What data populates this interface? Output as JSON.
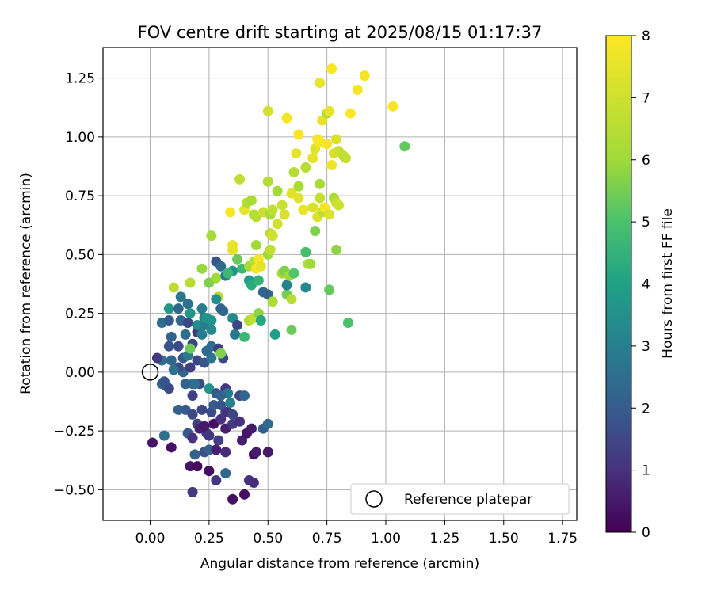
{
  "chart_data": {
    "type": "scatter",
    "title": "FOV centre drift starting at 2025/08/15 01:17:37",
    "xlabel": "Angular distance from reference (arcmin)",
    "ylabel": "Rotation from reference (arcmin)",
    "xlim": [
      -0.2,
      1.81
    ],
    "ylim": [
      -0.63,
      1.38
    ],
    "xticks": [
      0.0,
      0.25,
      0.5,
      0.75,
      1.0,
      1.25,
      1.5,
      1.75
    ],
    "xtick_labels": [
      "0.00",
      "0.25",
      "0.50",
      "0.75",
      "1.00",
      "1.25",
      "1.50",
      "1.75"
    ],
    "yticks": [
      -0.5,
      -0.25,
      0.0,
      0.25,
      0.5,
      0.75,
      1.0,
      1.25
    ],
    "ytick_labels": [
      "−0.50",
      "−0.25",
      "0.00",
      "0.25",
      "0.50",
      "0.75",
      "1.00",
      "1.25"
    ],
    "grid": true,
    "colorbar": {
      "label": "Hours from first FF file",
      "colormap": "viridis",
      "range": [
        0,
        8
      ],
      "ticks": [
        0,
        1,
        2,
        3,
        4,
        5,
        6,
        7,
        8
      ],
      "tick_labels": [
        "0",
        "1",
        "2",
        "3",
        "4",
        "5",
        "6",
        "7",
        "8"
      ]
    },
    "reference": {
      "x": 0.0,
      "y": 0.0,
      "label": "Reference platepar"
    },
    "legend": {
      "position": "lower-right",
      "entries": [
        "Reference platepar"
      ]
    },
    "points": [
      [
        0.01,
        -0.3,
        0.4
      ],
      [
        0.09,
        -0.32,
        0.3
      ],
      [
        0.06,
        -0.27,
        2.5
      ],
      [
        0.18,
        -0.51,
        1.2
      ],
      [
        0.17,
        -0.4,
        0.4
      ],
      [
        0.2,
        -0.4,
        0.2
      ],
      [
        0.25,
        -0.42,
        0.3
      ],
      [
        0.28,
        -0.46,
        1.1
      ],
      [
        0.32,
        -0.43,
        2.3
      ],
      [
        0.35,
        -0.54,
        0.3
      ],
      [
        0.4,
        -0.52,
        0.3
      ],
      [
        0.42,
        -0.46,
        1.0
      ],
      [
        0.44,
        -0.47,
        0.9
      ],
      [
        0.44,
        -0.35,
        0.3
      ],
      [
        0.45,
        -0.34,
        0.6
      ],
      [
        0.5,
        -0.34,
        0.5
      ],
      [
        0.39,
        -0.29,
        0.6
      ],
      [
        0.41,
        -0.26,
        0.4
      ],
      [
        0.43,
        -0.24,
        0.5
      ],
      [
        0.48,
        -0.24,
        2.0
      ],
      [
        0.5,
        -0.22,
        2.4
      ],
      [
        0.19,
        -0.35,
        2.2
      ],
      [
        0.16,
        -0.26,
        1.9
      ],
      [
        0.18,
        -0.28,
        1.0
      ],
      [
        0.23,
        -0.34,
        1.7
      ],
      [
        0.25,
        -0.33,
        2.2
      ],
      [
        0.28,
        -0.33,
        0.6
      ],
      [
        0.32,
        -0.34,
        0.9
      ],
      [
        0.24,
        -0.26,
        1.3
      ],
      [
        0.25,
        -0.27,
        1.1
      ],
      [
        0.29,
        -0.29,
        1.3
      ],
      [
        0.32,
        -0.24,
        0.6
      ],
      [
        0.35,
        -0.22,
        1.2
      ],
      [
        0.2,
        -0.22,
        1.3
      ],
      [
        0.21,
        -0.24,
        0.7
      ],
      [
        0.23,
        -0.23,
        0.5
      ],
      [
        0.27,
        -0.22,
        0.3
      ],
      [
        0.3,
        -0.2,
        1.0
      ],
      [
        0.32,
        -0.17,
        1.2
      ],
      [
        0.38,
        -0.21,
        1.0
      ],
      [
        0.12,
        -0.16,
        2.2
      ],
      [
        0.15,
        -0.16,
        2.0
      ],
      [
        0.18,
        -0.18,
        1.6
      ],
      [
        0.22,
        -0.16,
        1.5
      ],
      [
        0.26,
        -0.17,
        1.6
      ],
      [
        0.27,
        -0.14,
        2.0
      ],
      [
        0.3,
        -0.14,
        1.8
      ],
      [
        0.33,
        -0.17,
        1.0
      ],
      [
        0.35,
        -0.18,
        1.5
      ],
      [
        0.38,
        -0.1,
        1.5
      ],
      [
        0.4,
        -0.1,
        2.3
      ],
      [
        0.18,
        -0.1,
        1.3
      ],
      [
        0.21,
        -0.05,
        1.6
      ],
      [
        0.18,
        -0.05,
        2.6
      ],
      [
        0.25,
        -0.07,
        3.6
      ],
      [
        0.28,
        -0.09,
        1.9
      ],
      [
        0.32,
        -0.07,
        1.1
      ],
      [
        0.33,
        -0.09,
        2.8
      ],
      [
        0.34,
        -0.13,
        3.1
      ],
      [
        0.3,
        -0.1,
        2.2
      ],
      [
        0.05,
        -0.05,
        2.3
      ],
      [
        0.07,
        -0.06,
        2.0
      ],
      [
        0.08,
        -0.07,
        1.6
      ],
      [
        0.06,
        -0.04,
        1.8
      ],
      [
        0.15,
        -0.05,
        2.2
      ],
      [
        0.19,
        -0.05,
        2.5
      ],
      [
        0.14,
        0.0,
        2.3
      ],
      [
        0.17,
        0.02,
        1.3
      ],
      [
        0.12,
        0.02,
        1.6
      ],
      [
        0.1,
        0.01,
        2.6
      ],
      [
        0.2,
        0.05,
        1.5
      ],
      [
        0.23,
        0.04,
        1.9
      ],
      [
        0.26,
        0.06,
        2.7
      ],
      [
        0.31,
        0.06,
        1.5
      ],
      [
        0.05,
        0.05,
        2.6
      ],
      [
        0.03,
        0.06,
        1.2
      ],
      [
        0.09,
        0.05,
        2.3
      ],
      [
        0.14,
        0.06,
        1.9
      ],
      [
        0.16,
        0.07,
        2.9
      ],
      [
        0.08,
        0.11,
        1.8
      ],
      [
        0.12,
        0.11,
        1.6
      ],
      [
        0.18,
        0.12,
        1.4
      ],
      [
        0.24,
        0.09,
        2.4
      ],
      [
        0.26,
        0.11,
        2.5
      ],
      [
        0.29,
        0.1,
        1.3
      ],
      [
        0.3,
        0.08,
        5.6
      ],
      [
        0.17,
        0.1,
        5.4
      ],
      [
        0.09,
        0.15,
        2.2
      ],
      [
        0.15,
        0.16,
        2.5
      ],
      [
        0.2,
        0.17,
        1.1
      ],
      [
        0.22,
        0.16,
        2.9
      ],
      [
        0.05,
        0.21,
        2.5
      ],
      [
        0.08,
        0.22,
        2.0
      ],
      [
        0.13,
        0.22,
        2.3
      ],
      [
        0.16,
        0.21,
        1.5
      ],
      [
        0.2,
        0.2,
        3.4
      ],
      [
        0.23,
        0.2,
        2.9
      ],
      [
        0.26,
        0.22,
        3.6
      ],
      [
        0.26,
        0.18,
        3.3
      ],
      [
        0.08,
        0.27,
        3.7
      ],
      [
        0.12,
        0.27,
        2.3
      ],
      [
        0.13,
        0.32,
        2.8
      ],
      [
        0.16,
        0.29,
        2.6
      ],
      [
        0.17,
        0.25,
        3.7
      ],
      [
        0.23,
        0.23,
        3.0
      ],
      [
        0.22,
        0.27,
        2.9
      ],
      [
        0.24,
        0.23,
        3.6
      ],
      [
        0.29,
        0.32,
        6.6
      ],
      [
        0.3,
        0.27,
        2.2
      ],
      [
        0.28,
        0.31,
        3.5
      ],
      [
        0.31,
        0.26,
        2.3
      ],
      [
        0.35,
        0.23,
        3.3
      ],
      [
        0.37,
        0.2,
        1.5
      ],
      [
        0.36,
        0.16,
        2.8
      ],
      [
        0.4,
        0.15,
        4.7
      ],
      [
        0.42,
        0.22,
        6.4
      ],
      [
        0.44,
        0.23,
        6.7
      ],
      [
        0.46,
        0.25,
        5.8
      ],
      [
        0.47,
        0.22,
        4.2
      ],
      [
        0.53,
        0.16,
        3.9
      ],
      [
        0.6,
        0.18,
        5.4
      ],
      [
        0.1,
        0.36,
        6.6
      ],
      [
        0.17,
        0.38,
        6.5
      ],
      [
        0.22,
        0.44,
        5.9
      ],
      [
        0.25,
        0.38,
        5.6
      ],
      [
        0.28,
        0.4,
        6.0
      ],
      [
        0.32,
        0.41,
        3.0
      ],
      [
        0.35,
        0.43,
        3.6
      ],
      [
        0.39,
        0.44,
        4.7
      ],
      [
        0.42,
        0.39,
        3.9
      ],
      [
        0.43,
        0.37,
        4.3
      ],
      [
        0.46,
        0.39,
        4.5
      ],
      [
        0.48,
        0.34,
        2.3
      ],
      [
        0.5,
        0.33,
        2.2
      ],
      [
        0.52,
        0.3,
        6.3
      ],
      [
        0.58,
        0.33,
        5.5
      ],
      [
        0.6,
        0.31,
        6.5
      ],
      [
        0.58,
        0.37,
        3.1
      ],
      [
        0.56,
        0.42,
        6.0
      ],
      [
        0.57,
        0.43,
        5.6
      ],
      [
        0.59,
        0.41,
        6.0
      ],
      [
        0.61,
        0.42,
        5.1
      ],
      [
        0.66,
        0.36,
        3.2
      ],
      [
        0.67,
        0.46,
        6.4
      ],
      [
        0.68,
        0.46,
        6.0
      ],
      [
        0.76,
        0.35,
        5.3
      ],
      [
        0.84,
        0.21,
        5.0
      ],
      [
        0.26,
        0.58,
        6.1
      ],
      [
        0.28,
        0.47,
        1.8
      ],
      [
        0.3,
        0.45,
        2.4
      ],
      [
        0.33,
        0.42,
        4.7
      ],
      [
        0.35,
        0.52,
        7.5
      ],
      [
        0.35,
        0.54,
        7.5
      ],
      [
        0.37,
        0.48,
        5.4
      ],
      [
        0.42,
        0.45,
        6.2
      ],
      [
        0.44,
        0.47,
        6.4
      ],
      [
        0.45,
        0.44,
        7.9
      ],
      [
        0.46,
        0.48,
        7.8
      ],
      [
        0.47,
        0.45,
        7.5
      ],
      [
        0.45,
        0.54,
        6.0
      ],
      [
        0.5,
        0.5,
        6.0
      ],
      [
        0.51,
        0.52,
        6.7
      ],
      [
        0.51,
        0.59,
        6.6
      ],
      [
        0.52,
        0.58,
        7.0
      ],
      [
        0.54,
        0.63,
        7.0
      ],
      [
        0.66,
        0.51,
        4.9
      ],
      [
        0.7,
        0.6,
        5.6
      ],
      [
        0.79,
        0.52,
        5.8
      ],
      [
        0.34,
        0.68,
        7.8
      ],
      [
        0.38,
        0.82,
        6.7
      ],
      [
        0.4,
        0.69,
        7.5
      ],
      [
        0.41,
        0.72,
        6.4
      ],
      [
        0.43,
        0.73,
        6.2
      ],
      [
        0.44,
        0.67,
        6.4
      ],
      [
        0.45,
        0.66,
        6.5
      ],
      [
        0.48,
        0.68,
        6.9
      ],
      [
        0.5,
        0.81,
        6.4
      ],
      [
        0.51,
        0.67,
        6.2
      ],
      [
        0.52,
        0.69,
        6.7
      ],
      [
        0.54,
        0.77,
        6.1
      ],
      [
        0.56,
        0.71,
        6.9
      ],
      [
        0.57,
        0.67,
        7.2
      ],
      [
        0.6,
        0.76,
        7.4
      ],
      [
        0.61,
        0.85,
        6.5
      ],
      [
        0.63,
        0.79,
        6.2
      ],
      [
        0.63,
        0.74,
        7.4
      ],
      [
        0.65,
        0.69,
        7.6
      ],
      [
        0.66,
        0.87,
        6.5
      ],
      [
        0.69,
        0.7,
        7.2
      ],
      [
        0.71,
        0.66,
        7.3
      ],
      [
        0.72,
        0.8,
        6.2
      ],
      [
        0.72,
        0.74,
        6.8
      ],
      [
        0.73,
        0.68,
        6.7
      ],
      [
        0.74,
        0.7,
        7.8
      ],
      [
        0.76,
        0.67,
        7.3
      ],
      [
        0.78,
        0.74,
        6.2
      ],
      [
        0.79,
        0.72,
        6.8
      ],
      [
        0.8,
        0.71,
        7.0
      ],
      [
        0.62,
        0.93,
        7.5
      ],
      [
        0.63,
        1.01,
        7.9
      ],
      [
        0.69,
        0.91,
        7.5
      ],
      [
        0.7,
        0.95,
        7.4
      ],
      [
        0.71,
        0.99,
        7.8
      ],
      [
        0.72,
        0.98,
        7.9
      ],
      [
        0.73,
        1.07,
        7.5
      ],
      [
        0.75,
        0.97,
        7.8
      ],
      [
        0.77,
        0.88,
        7.7
      ],
      [
        0.78,
        0.93,
        7.2
      ],
      [
        0.79,
        0.99,
        7.2
      ],
      [
        0.8,
        0.94,
        6.9
      ],
      [
        0.83,
        0.91,
        6.9
      ],
      [
        0.82,
        0.92,
        6.7
      ],
      [
        0.75,
        1.1,
        6.5
      ],
      [
        0.76,
        1.11,
        7.5
      ],
      [
        0.72,
        1.23,
        7.6
      ],
      [
        0.77,
        1.29,
        7.9
      ],
      [
        0.85,
        1.1,
        8.0
      ],
      [
        0.88,
        1.2,
        7.8
      ],
      [
        0.91,
        1.26,
        7.8
      ],
      [
        1.03,
        1.13,
        7.8
      ],
      [
        0.5,
        1.11,
        7.1
      ],
      [
        0.58,
        1.08,
        7.8
      ],
      [
        1.08,
        0.96,
        5.3
      ]
    ]
  }
}
